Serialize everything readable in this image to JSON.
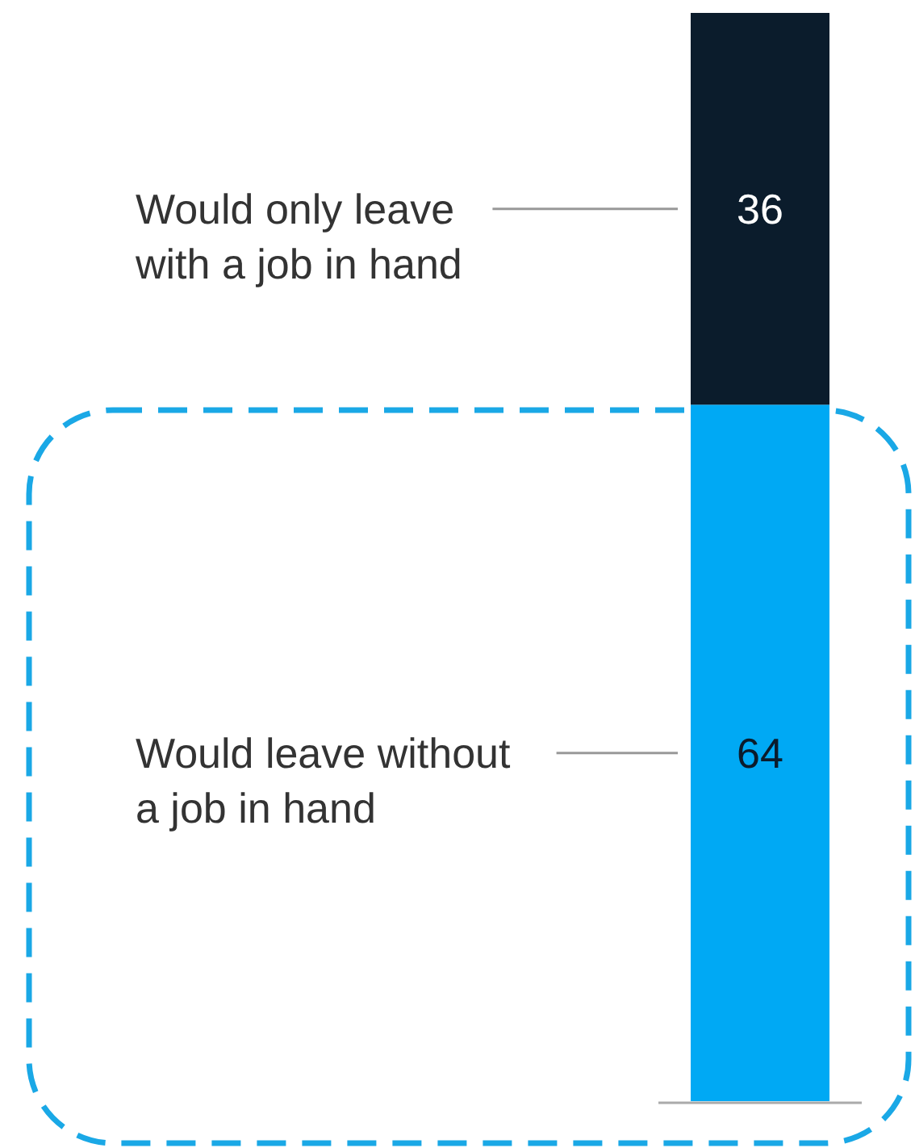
{
  "chart_data": {
    "type": "bar",
    "stacked": true,
    "data_labels": true,
    "categories": [
      null
    ],
    "series": [
      {
        "name": "Would leave without a job in hand",
        "color": "#00a9f4",
        "values": [
          64
        ]
      },
      {
        "name": "Would only leave with a job in hand",
        "color": "#0b1c2c",
        "values": [
          36
        ]
      }
    ]
  }
}
